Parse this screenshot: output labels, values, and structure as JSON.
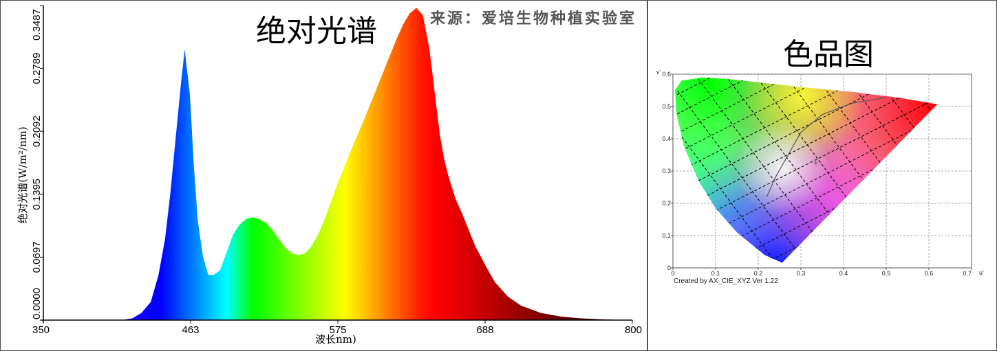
{
  "chart_data": [
    {
      "type": "area",
      "title": "绝对光谱",
      "source": "来源：爱培生物种植实验室",
      "xlabel": "波长nm)",
      "ylabel": "绝对光谱(W/m²/nm)",
      "xlim": [
        350,
        800
      ],
      "ylim": [
        0,
        0.3487
      ],
      "x_ticks": [
        "350",
        "463",
        "575",
        "688",
        "800"
      ],
      "y_ticks": [
        "0.0000",
        "0.0697",
        "0.1395",
        "0.2092",
        "0.2789",
        "0.3487"
      ],
      "fill": "spectral (wavelength color)",
      "grid": false,
      "x": [
        350,
        410,
        418,
        425,
        432,
        438,
        443,
        447,
        451,
        455,
        458,
        462,
        465,
        468,
        472,
        476,
        480,
        485,
        490,
        495,
        500,
        505,
        510,
        515,
        520,
        525,
        530,
        535,
        540,
        545,
        550,
        555,
        560,
        565,
        570,
        575,
        580,
        585,
        590,
        595,
        600,
        605,
        610,
        615,
        620,
        625,
        630,
        635,
        640,
        645,
        650,
        653,
        656,
        659,
        662,
        665,
        670,
        675,
        680,
        688,
        695,
        705,
        715,
        730,
        745,
        760,
        775,
        790,
        800
      ],
      "y": [
        0.0,
        0.0,
        0.002,
        0.008,
        0.02,
        0.05,
        0.09,
        0.14,
        0.2,
        0.26,
        0.3,
        0.25,
        0.17,
        0.11,
        0.07,
        0.05,
        0.05,
        0.055,
        0.075,
        0.095,
        0.106,
        0.112,
        0.114,
        0.112,
        0.108,
        0.1,
        0.09,
        0.08,
        0.074,
        0.072,
        0.074,
        0.082,
        0.095,
        0.112,
        0.132,
        0.152,
        0.17,
        0.188,
        0.205,
        0.222,
        0.24,
        0.258,
        0.276,
        0.294,
        0.312,
        0.328,
        0.34,
        0.346,
        0.338,
        0.3,
        0.24,
        0.205,
        0.18,
        0.162,
        0.148,
        0.134,
        0.118,
        0.1,
        0.082,
        0.06,
        0.042,
        0.026,
        0.016,
        0.008,
        0.004,
        0.002,
        0.001,
        0.0,
        0.0
      ]
    },
    {
      "type": "diagram",
      "title": "色品图",
      "credit": "Created by AX_CIE_XYZ Ver 1.22",
      "x_axis_label": "u'",
      "y_axis_label": "v'",
      "xlim": [
        0,
        0.7
      ],
      "ylim": [
        0,
        0.6
      ],
      "x_ticks": [
        "0",
        "0.1",
        "0.2",
        "0.3",
        "0.4",
        "0.5",
        "0.6",
        "0.7"
      ],
      "y_ticks": [
        "0",
        "0.1",
        "0.2",
        "0.3",
        "0.4",
        "0.5",
        "0.6"
      ],
      "grid": true,
      "spectral_locus": [
        [
          0.256,
          0.016
        ],
        [
          0.215,
          0.04
        ],
        [
          0.15,
          0.11
        ],
        [
          0.1,
          0.185
        ],
        [
          0.06,
          0.27
        ],
        [
          0.025,
          0.38
        ],
        [
          0.008,
          0.48
        ],
        [
          0.005,
          0.55
        ],
        [
          0.02,
          0.58
        ],
        [
          0.07,
          0.59
        ],
        [
          0.13,
          0.585
        ],
        [
          0.2,
          0.575
        ],
        [
          0.3,
          0.56
        ],
        [
          0.42,
          0.545
        ],
        [
          0.53,
          0.527
        ],
        [
          0.62,
          0.507
        ]
      ],
      "planckian_locus": [
        [
          0.22,
          0.22
        ],
        [
          0.24,
          0.28
        ],
        [
          0.27,
          0.35
        ],
        [
          0.3,
          0.42
        ],
        [
          0.35,
          0.475
        ],
        [
          0.42,
          0.51
        ],
        [
          0.5,
          0.528
        ]
      ],
      "measured_point": [
        0.335,
        0.325
      ]
    }
  ]
}
